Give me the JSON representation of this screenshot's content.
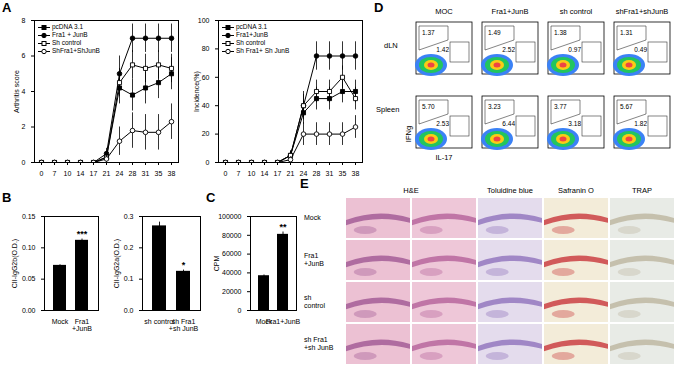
{
  "chart_data": [
    {
      "type": "line",
      "panel": "A",
      "y_label": "Arthritis score",
      "legend": "top-left",
      "categories": [
        "0",
        "7",
        "10",
        "14",
        "17",
        "21",
        "24",
        "28",
        "31",
        "35",
        "38"
      ],
      "ylim": [
        0,
        8
      ],
      "yticks": [
        0,
        2,
        4,
        6,
        8
      ],
      "series": [
        {
          "name": "pcDNA 3.1",
          "color": "#000000",
          "marker": "square",
          "values": [
            0,
            0,
            0,
            0,
            0,
            0.3,
            4.2,
            3.8,
            4.2,
            4.5,
            5.0
          ],
          "errors": [
            0,
            0,
            0,
            0,
            0,
            0.2,
            0.9,
            0.9,
            0.9,
            0.9,
            0.9
          ]
        },
        {
          "name": "Fra1 + JunB",
          "color": "#000000",
          "marker": "circle",
          "values": [
            0,
            0,
            0,
            0,
            0,
            0.5,
            5.0,
            7.0,
            7.0,
            7.0,
            7.0
          ],
          "errors": [
            0,
            0,
            0,
            0,
            0,
            0.3,
            1.0,
            0.8,
            0.8,
            0.8,
            0.8
          ]
        },
        {
          "name": "Sh control",
          "color": "#000000",
          "marker": "open-square",
          "values": [
            0,
            0,
            0,
            0,
            0,
            0.3,
            4.5,
            5.5,
            5.3,
            5.5,
            5.3
          ],
          "errors": [
            0,
            0,
            0,
            0,
            0,
            0.2,
            0.8,
            0.8,
            0.8,
            0.8,
            0.8
          ]
        },
        {
          "name": "ShFra1+ShJunB",
          "color": "#000000",
          "marker": "open-circle",
          "values": [
            0,
            0,
            0,
            0,
            0,
            0.2,
            1.2,
            1.8,
            1.7,
            1.7,
            2.3
          ],
          "errors": [
            0,
            0,
            0,
            0,
            0,
            0.3,
            0.8,
            1.0,
            1.0,
            1.0,
            1.0
          ]
        }
      ]
    },
    {
      "type": "line",
      "y_label": "Incidence(%)",
      "legend": "top-left",
      "categories": [
        "0",
        "7",
        "10",
        "14",
        "17",
        "21",
        "24",
        "28",
        "31",
        "35",
        "38"
      ],
      "ylim": [
        0,
        100
      ],
      "yticks": [
        0,
        20,
        40,
        60,
        80,
        100
      ],
      "series": [
        {
          "name": "pcDNA 3.1",
          "color": "#000000",
          "marker": "square",
          "values": [
            0,
            0,
            0,
            0,
            0,
            5,
            35,
            45,
            45,
            50,
            50
          ],
          "errors": [
            0,
            0,
            0,
            0,
            0,
            3,
            8,
            8,
            8,
            8,
            8
          ]
        },
        {
          "name": "Fra1+JunB",
          "color": "#000000",
          "marker": "circle",
          "values": [
            0,
            0,
            0,
            0,
            0,
            5,
            40,
            75,
            75,
            75,
            75
          ],
          "errors": [
            0,
            0,
            0,
            0,
            0,
            3,
            10,
            10,
            10,
            10,
            10
          ]
        },
        {
          "name": "Sh control",
          "color": "#000000",
          "marker": "open-square",
          "values": [
            0,
            0,
            0,
            0,
            0,
            5,
            40,
            50,
            50,
            60,
            45
          ],
          "errors": [
            0,
            0,
            0,
            0,
            0,
            3,
            8,
            8,
            8,
            8,
            8
          ]
        },
        {
          "name": "Sh Fra1+ Sh JunB",
          "color": "#000000",
          "marker": "open-circle",
          "values": [
            0,
            0,
            0,
            0,
            0,
            2,
            20,
            20,
            20,
            20,
            25
          ],
          "errors": [
            0,
            0,
            0,
            0,
            0,
            2,
            8,
            8,
            8,
            8,
            8
          ]
        }
      ]
    },
    {
      "type": "bar",
      "panel": "B",
      "y_label": "CII-IgG2b(O.D.)",
      "color": "#000000",
      "categories": [
        "Mock",
        "Fra1\n+JunB"
      ],
      "values": [
        0.072,
        0.112
      ],
      "errors": [
        0.001,
        0.002
      ],
      "ylim": [
        0,
        0.15
      ],
      "yticks": [
        {
          "value": 0,
          "label": "0.00"
        },
        {
          "value": 0.05,
          "label": "0.05"
        },
        {
          "value": 0.1,
          "label": "0.10"
        },
        {
          "value": 0.15,
          "label": "0.15"
        }
      ],
      "annotations": [
        {
          "category": "Fra1\n+JunB",
          "text": "***"
        }
      ]
    },
    {
      "type": "bar",
      "y_label": "CII-IgG2a(O.D.)",
      "color": "#000000",
      "categories": [
        "sh control",
        "sh Fra1\n+sh JunB"
      ],
      "values": [
        0.27,
        0.125
      ],
      "errors": [
        0.012,
        0.004
      ],
      "ylim": [
        0,
        0.3
      ],
      "yticks": [
        {
          "value": 0,
          "label": "0.0"
        },
        0.1,
        0.2,
        0.3
      ],
      "annotations": [
        {
          "category": "sh Fra1\n+sh JunB",
          "text": "*"
        }
      ]
    },
    {
      "type": "bar",
      "panel": "C",
      "y_label": "CPM",
      "color": "#000000",
      "categories": [
        "Mock",
        "Fra1+JunB"
      ],
      "values": [
        37000,
        81000
      ],
      "errors": [
        800,
        2500
      ],
      "ylim": [
        0,
        100000
      ],
      "yticks": [
        0,
        20000,
        40000,
        60000,
        80000,
        100000
      ],
      "annotations": [
        {
          "category": "Fra1+JunB",
          "text": "**"
        }
      ]
    }
  ],
  "flow_cytometry": {
    "panel": "D",
    "columns": [
      "MOC",
      "Fra1+JunB",
      "sh control",
      "shFra1+shJunB"
    ],
    "x_label": "IL-17",
    "y_label": "IFNg",
    "rows": [
      {
        "label": "dLN",
        "ifng": [
          1.37,
          1.49,
          1.38,
          1.31
        ],
        "il17": [
          1.42,
          2.52,
          0.97,
          0.49
        ]
      },
      {
        "label": "Spleen",
        "ifng": [
          5.7,
          3.23,
          3.77,
          5.67
        ],
        "il17": [
          2.53,
          6.44,
          3.18,
          1.82
        ]
      }
    ]
  },
  "histology": {
    "panel": "E",
    "columns": [
      "H&E",
      "Toluidine blue",
      "Safranin O",
      "TRAP"
    ],
    "rows": [
      "Mock",
      "Fra1\n+JunB",
      "sh\ncontrol",
      "sh Fra1\n+sh JunB"
    ]
  }
}
